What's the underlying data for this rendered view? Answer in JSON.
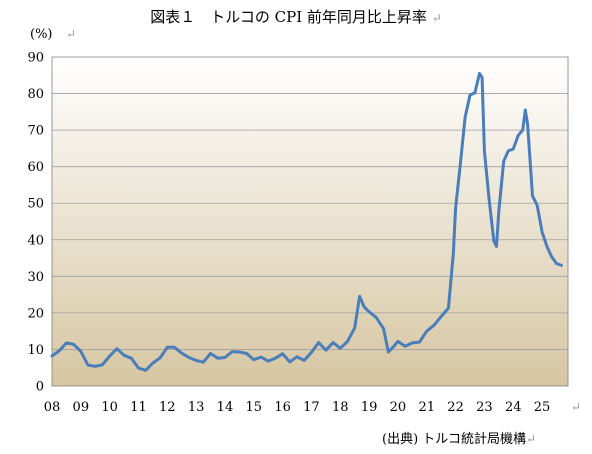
{
  "title": "図表１　トルコの CPI 前年同月比上昇率",
  "title_mark": "↵",
  "unit_label": "(%)",
  "unit_mark": "↵",
  "source": "(出典) トルコ統計局機構",
  "source_mark": "↵",
  "xaxis_mark": "↵",
  "colors": {
    "line": "#4a7ebb",
    "plot_bg_top": "#ffffff",
    "plot_bg_bottom": "#d6c6a2",
    "gridline": "#a0a0a0"
  },
  "chart_data": {
    "type": "line",
    "title": "図表１　トルコの CPI 前年同月比上昇率",
    "ylabel": "(%)",
    "xlabel": "",
    "ylim": [
      0,
      90
    ],
    "xlim": [
      2008.0,
      2025.9
    ],
    "grid": "horizontal",
    "y_ticks": [
      "0",
      "10",
      "20",
      "30",
      "40",
      "50",
      "60",
      "70",
      "80",
      "90"
    ],
    "x_ticks": [
      "08",
      "09",
      "10",
      "11",
      "12",
      "13",
      "14",
      "15",
      "16",
      "17",
      "18",
      "19",
      "20",
      "21",
      "22",
      "23",
      "24",
      "25"
    ],
    "series": [
      {
        "x": [
          2008.0,
          2008.25,
          2008.5,
          2008.75,
          2009.0,
          2009.25,
          2009.5,
          2009.75,
          2010.0,
          2010.25,
          2010.5,
          2010.75,
          2011.0,
          2011.25,
          2011.5,
          2011.75,
          2012.0,
          2012.25,
          2012.5,
          2012.75,
          2013.0,
          2013.25,
          2013.5,
          2013.75,
          2014.0,
          2014.25,
          2014.5,
          2014.75,
          2015.0,
          2015.25,
          2015.5,
          2015.75,
          2016.0,
          2016.25,
          2016.5,
          2016.75,
          2017.0,
          2017.25,
          2017.5,
          2017.75,
          2018.0,
          2018.25,
          2018.5,
          2018.67,
          2018.83,
          2019.0,
          2019.25,
          2019.5,
          2019.67,
          2019.83,
          2020.0,
          2020.25,
          2020.5,
          2020.75,
          2021.0,
          2021.25,
          2021.5,
          2021.75,
          2021.92,
          2022.0,
          2022.17,
          2022.33,
          2022.5,
          2022.67,
          2022.83,
          2022.92,
          2023.0,
          2023.17,
          2023.33,
          2023.42,
          2023.5,
          2023.67,
          2023.83,
          2024.0,
          2024.17,
          2024.33,
          2024.42,
          2024.5,
          2024.67,
          2024.83,
          2025.0,
          2025.17,
          2025.33,
          2025.5,
          2025.67
        ],
        "y": [
          8.2,
          9.6,
          11.8,
          11.4,
          9.5,
          5.7,
          5.4,
          5.8,
          8.2,
          10.2,
          8.4,
          7.6,
          4.9,
          4.3,
          6.3,
          7.7,
          10.6,
          10.6,
          9.0,
          7.8,
          7.0,
          6.5,
          8.9,
          7.6,
          7.8,
          9.4,
          9.3,
          8.9,
          7.2,
          7.9,
          6.8,
          7.6,
          8.8,
          6.6,
          8.0,
          7.0,
          9.2,
          11.9,
          9.8,
          11.9,
          10.3,
          12.2,
          15.9,
          24.5,
          21.6,
          20.3,
          18.7,
          15.7,
          9.3,
          10.6,
          12.2,
          10.9,
          11.8,
          12.0,
          15.0,
          16.6,
          19.0,
          21.3,
          36.1,
          48.7,
          61.1,
          73.5,
          79.6,
          80.2,
          85.5,
          84.4,
          64.3,
          50.5,
          39.6,
          38.2,
          47.8,
          61.5,
          64.3,
          64.8,
          68.5,
          70.0,
          75.5,
          71.6,
          52.0,
          49.4,
          42.1,
          38.1,
          35.4,
          33.5,
          33.0
        ]
      }
    ]
  }
}
